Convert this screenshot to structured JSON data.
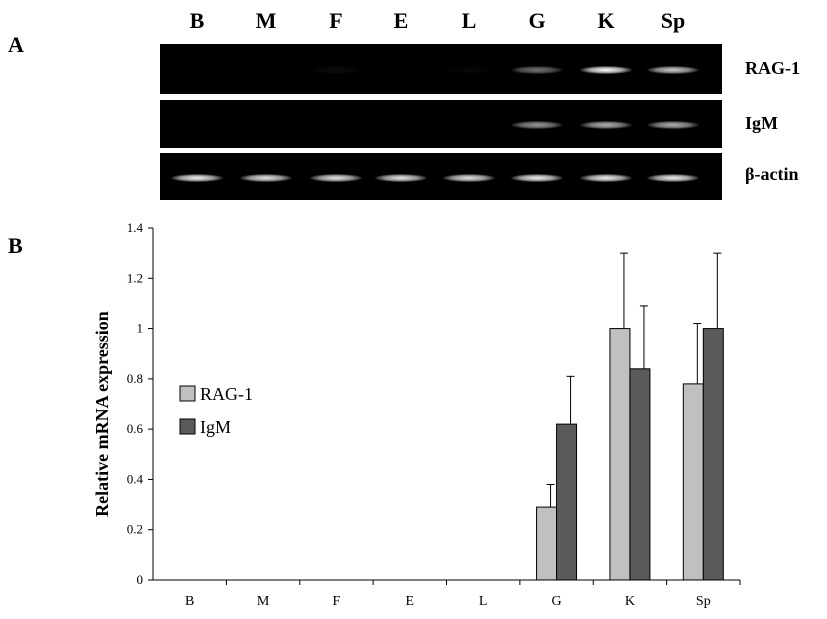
{
  "panel_a_label": "A",
  "panel_b_label": "B",
  "gel": {
    "lanes": [
      "B",
      "M",
      "F",
      "E",
      "L",
      "G",
      "K",
      "Sp"
    ],
    "rows": [
      {
        "label": "RAG-1",
        "intensity": [
          0,
          0,
          0.05,
          0,
          0.03,
          0.45,
          1.0,
          0.8
        ]
      },
      {
        "label": "IgM",
        "intensity": [
          0,
          0,
          0,
          0,
          0,
          0.6,
          0.7,
          0.7
        ]
      },
      {
        "label": "β-actin",
        "intensity": [
          0.95,
          0.9,
          0.9,
          0.9,
          0.9,
          0.95,
          0.95,
          0.95
        ]
      }
    ]
  },
  "colors": {
    "rag1": "#c0c0c0",
    "igm": "#5a5a5a",
    "gel_background": "#000000",
    "band": "#ffffff"
  },
  "chart_data": {
    "type": "bar",
    "categories": [
      "B",
      "M",
      "F",
      "E",
      "L",
      "G",
      "K",
      "Sp"
    ],
    "series": [
      {
        "name": "RAG-1",
        "values": [
          0,
          0,
          0,
          0,
          0,
          0.29,
          1.0,
          0.78
        ],
        "errors": [
          0,
          0,
          0,
          0,
          0,
          0.09,
          0.3,
          0.24
        ]
      },
      {
        "name": "IgM",
        "values": [
          0,
          0,
          0,
          0,
          0,
          0.62,
          0.84,
          1.0
        ],
        "errors": [
          0,
          0,
          0,
          0,
          0,
          0.19,
          0.25,
          0.3
        ]
      }
    ],
    "ylabel": "Relative mRNA expression",
    "xlabel": "",
    "ylim": [
      0,
      1.4
    ],
    "yticks": [
      "0",
      "0.2",
      "0.4",
      "0.6",
      "0.8",
      "1",
      "1.2",
      "1.4"
    ],
    "legend": "left-middle",
    "grid": false
  }
}
